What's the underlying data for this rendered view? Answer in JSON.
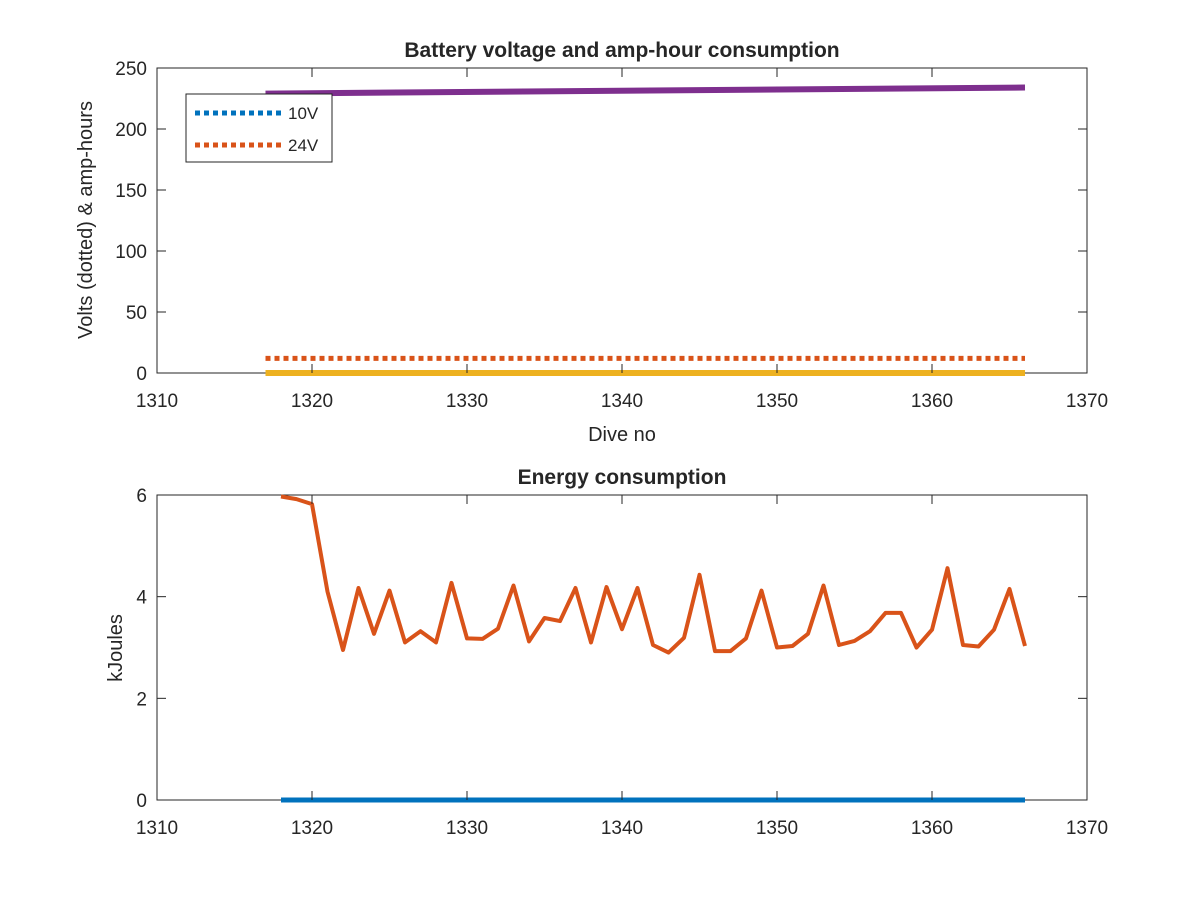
{
  "chart_data": [
    {
      "type": "line",
      "title": "Battery voltage and amp-hour consumption",
      "xlabel": "Dive no",
      "ylabel": "Volts (dotted) & amp-hours",
      "xlim": [
        1310,
        1370
      ],
      "ylim": [
        0,
        250
      ],
      "xticks": [
        1310,
        1320,
        1330,
        1340,
        1350,
        1360,
        1370
      ],
      "yticks": [
        0,
        50,
        100,
        150,
        200,
        250
      ],
      "grid": false,
      "legend": {
        "placement": "top-left",
        "entries": [
          "10V",
          "24V"
        ]
      },
      "series": [
        {
          "name": "10V",
          "color": "#0072BD",
          "style": "dotted",
          "x": [
            1317,
            1366
          ],
          "y": [
            0,
            0
          ]
        },
        {
          "name": "24V",
          "color": "#D95319",
          "style": "dotted",
          "x": [
            1317,
            1366
          ],
          "y": [
            12,
            12
          ]
        },
        {
          "color": "#EDB120",
          "style": "solid",
          "x": [
            1317,
            1366
          ],
          "y": [
            0,
            0
          ]
        },
        {
          "color": "#7E2F8E",
          "style": "solid",
          "x": [
            1317,
            1366
          ],
          "y": [
            229,
            234
          ]
        }
      ]
    },
    {
      "type": "line",
      "title": "Energy consumption",
      "xlabel": "",
      "ylabel": "kJoules",
      "xlim": [
        1310,
        1370
      ],
      "ylim": [
        0,
        6
      ],
      "xticks": [
        1310,
        1320,
        1330,
        1340,
        1350,
        1360,
        1370
      ],
      "yticks": [
        0,
        2,
        4,
        6
      ],
      "grid": false,
      "series": [
        {
          "color": "#0072BD",
          "style": "solid",
          "x": [
            1318,
            1366
          ],
          "y": [
            0,
            0
          ]
        },
        {
          "color": "#D95319",
          "style": "solid",
          "x": [
            1318,
            1319,
            1320,
            1321,
            1322,
            1323,
            1324,
            1325,
            1326,
            1327,
            1328,
            1329,
            1330,
            1331,
            1332,
            1333,
            1334,
            1335,
            1336,
            1337,
            1338,
            1339,
            1340,
            1341,
            1342,
            1343,
            1344,
            1345,
            1346,
            1347,
            1348,
            1349,
            1350,
            1351,
            1352,
            1353,
            1354,
            1355,
            1356,
            1357,
            1358,
            1359,
            1360,
            1361,
            1362,
            1363,
            1364,
            1365,
            1366
          ],
          "y": [
            5.97,
            5.92,
            5.82,
            4.1,
            2.95,
            4.17,
            3.27,
            4.12,
            3.1,
            3.32,
            3.1,
            4.27,
            3.18,
            3.17,
            3.37,
            4.22,
            3.12,
            3.58,
            3.52,
            4.17,
            3.1,
            4.19,
            3.36,
            4.17,
            3.05,
            2.9,
            3.19,
            4.43,
            2.93,
            2.93,
            3.18,
            4.12,
            3.0,
            3.03,
            3.27,
            4.22,
            3.05,
            3.13,
            3.32,
            3.68,
            3.68,
            3.0,
            3.35,
            4.56,
            3.05,
            3.02,
            3.35,
            4.15,
            3.03
          ]
        }
      ]
    }
  ]
}
